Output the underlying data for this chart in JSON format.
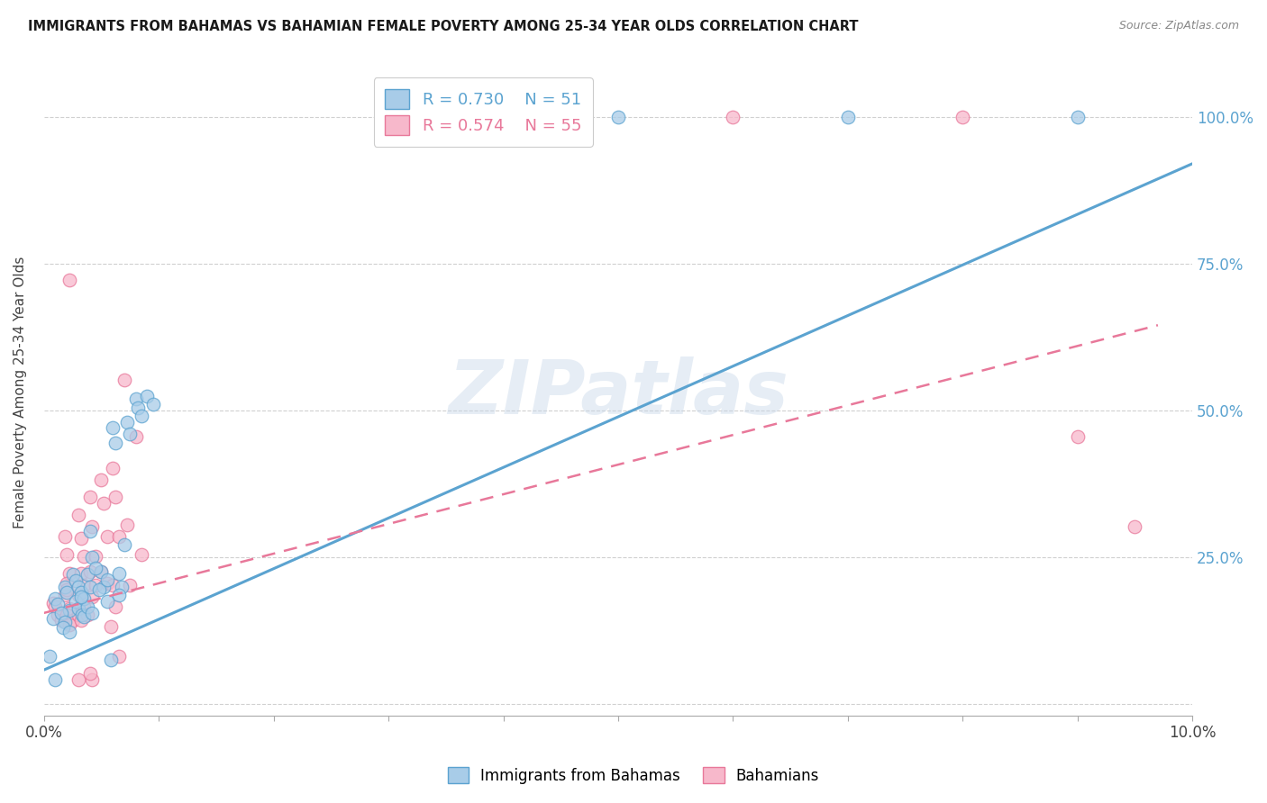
{
  "title": "IMMIGRANTS FROM BAHAMAS VS BAHAMIAN FEMALE POVERTY AMONG 25-34 YEAR OLDS CORRELATION CHART",
  "source": "Source: ZipAtlas.com",
  "ylabel": "Female Poverty Among 25-34 Year Olds",
  "legend_blue_r": "0.730",
  "legend_blue_n": "51",
  "legend_pink_r": "0.574",
  "legend_pink_n": "55",
  "watermark": "ZIPatlas",
  "blue_color": "#a8cce8",
  "blue_edge": "#5ba3d0",
  "pink_color": "#f7b8cb",
  "pink_edge": "#e8789a",
  "line_blue_color": "#5ba3d0",
  "line_pink_color": "#e8789a",
  "blue_scatter": [
    [
      0.001,
      0.18
    ],
    [
      0.0012,
      0.17
    ],
    [
      0.0008,
      0.145
    ],
    [
      0.0018,
      0.2
    ],
    [
      0.002,
      0.19
    ],
    [
      0.0022,
      0.16
    ],
    [
      0.0015,
      0.155
    ],
    [
      0.0018,
      0.14
    ],
    [
      0.0017,
      0.13
    ],
    [
      0.0025,
      0.22
    ],
    [
      0.0028,
      0.21
    ],
    [
      0.003,
      0.2
    ],
    [
      0.0032,
      0.19
    ],
    [
      0.0028,
      0.175
    ],
    [
      0.003,
      0.162
    ],
    [
      0.0033,
      0.152
    ],
    [
      0.0035,
      0.148
    ],
    [
      0.004,
      0.295
    ],
    [
      0.0042,
      0.25
    ],
    [
      0.0038,
      0.22
    ],
    [
      0.004,
      0.2
    ],
    [
      0.0035,
      0.18
    ],
    [
      0.0038,
      0.165
    ],
    [
      0.0042,
      0.155
    ],
    [
      0.005,
      0.225
    ],
    [
      0.0052,
      0.2
    ],
    [
      0.0048,
      0.195
    ],
    [
      0.0055,
      0.175
    ],
    [
      0.0058,
      0.075
    ],
    [
      0.006,
      0.47
    ],
    [
      0.0062,
      0.445
    ],
    [
      0.0065,
      0.222
    ],
    [
      0.0068,
      0.2
    ],
    [
      0.0065,
      0.185
    ],
    [
      0.0072,
      0.48
    ],
    [
      0.0075,
      0.46
    ],
    [
      0.007,
      0.272
    ],
    [
      0.008,
      0.52
    ],
    [
      0.0082,
      0.505
    ],
    [
      0.0085,
      0.49
    ],
    [
      0.009,
      0.525
    ],
    [
      0.0095,
      0.51
    ],
    [
      0.05,
      1.0
    ],
    [
      0.07,
      1.0
    ],
    [
      0.09,
      1.0
    ],
    [
      0.0005,
      0.082
    ],
    [
      0.001,
      0.042
    ],
    [
      0.0022,
      0.122
    ],
    [
      0.0032,
      0.182
    ],
    [
      0.0045,
      0.232
    ],
    [
      0.0055,
      0.212
    ]
  ],
  "pink_scatter": [
    [
      0.0008,
      0.172
    ],
    [
      0.001,
      0.165
    ],
    [
      0.0012,
      0.152
    ],
    [
      0.0015,
      0.142
    ],
    [
      0.0018,
      0.285
    ],
    [
      0.002,
      0.255
    ],
    [
      0.0022,
      0.222
    ],
    [
      0.002,
      0.205
    ],
    [
      0.0018,
      0.185
    ],
    [
      0.0022,
      0.162
    ],
    [
      0.002,
      0.152
    ],
    [
      0.0025,
      0.142
    ],
    [
      0.0022,
      0.135
    ],
    [
      0.003,
      0.322
    ],
    [
      0.0032,
      0.282
    ],
    [
      0.0035,
      0.252
    ],
    [
      0.0032,
      0.222
    ],
    [
      0.0035,
      0.202
    ],
    [
      0.003,
      0.185
    ],
    [
      0.0035,
      0.165
    ],
    [
      0.003,
      0.152
    ],
    [
      0.0032,
      0.142
    ],
    [
      0.004,
      0.352
    ],
    [
      0.0042,
      0.302
    ],
    [
      0.0045,
      0.252
    ],
    [
      0.004,
      0.225
    ],
    [
      0.0045,
      0.202
    ],
    [
      0.0042,
      0.182
    ],
    [
      0.0038,
      0.152
    ],
    [
      0.0042,
      0.042
    ],
    [
      0.005,
      0.382
    ],
    [
      0.0052,
      0.342
    ],
    [
      0.0055,
      0.285
    ],
    [
      0.005,
      0.225
    ],
    [
      0.0055,
      0.205
    ],
    [
      0.0058,
      0.132
    ],
    [
      0.006,
      0.402
    ],
    [
      0.0062,
      0.352
    ],
    [
      0.0065,
      0.285
    ],
    [
      0.006,
      0.202
    ],
    [
      0.0062,
      0.165
    ],
    [
      0.0065,
      0.082
    ],
    [
      0.007,
      0.552
    ],
    [
      0.0072,
      0.305
    ],
    [
      0.0075,
      0.202
    ],
    [
      0.008,
      0.455
    ],
    [
      0.0085,
      0.255
    ],
    [
      0.06,
      1.0
    ],
    [
      0.08,
      1.0
    ],
    [
      0.09,
      0.455
    ],
    [
      0.095,
      0.302
    ],
    [
      0.0022,
      0.722
    ],
    [
      0.003,
      0.042
    ],
    [
      0.004,
      0.052
    ],
    [
      0.002,
      0.195
    ]
  ],
  "xlim": [
    0,
    0.1
  ],
  "ylim": [
    -0.02,
    1.08
  ],
  "blue_line_x": [
    0.0,
    0.1
  ],
  "blue_line_y": [
    0.058,
    0.92
  ],
  "pink_line_x": [
    0.0,
    0.097
  ],
  "pink_line_y": [
    0.155,
    0.645
  ]
}
